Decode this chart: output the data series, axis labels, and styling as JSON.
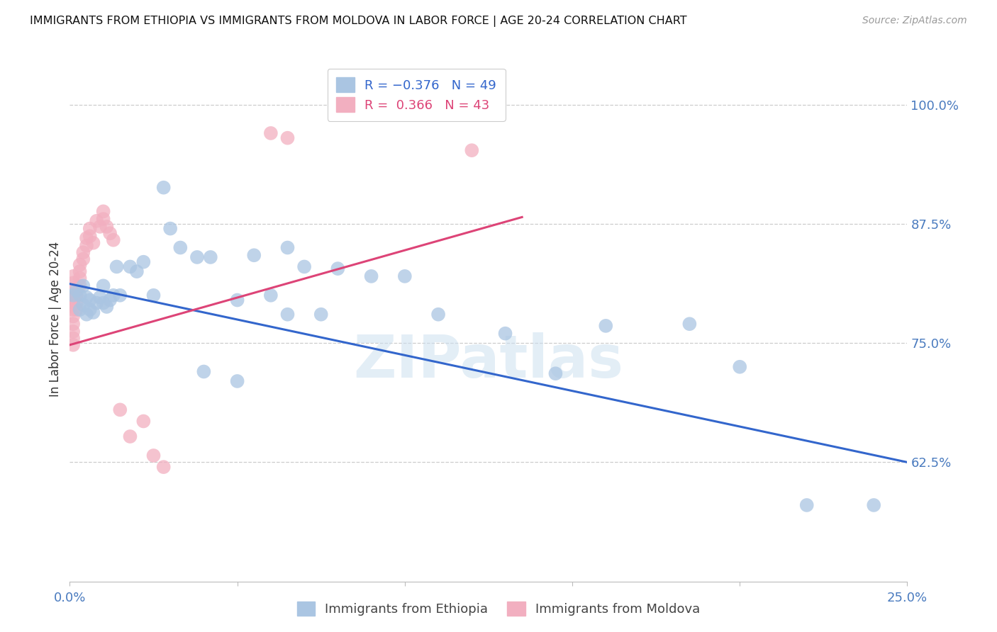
{
  "title": "IMMIGRANTS FROM ETHIOPIA VS IMMIGRANTS FROM MOLDOVA IN LABOR FORCE | AGE 20-24 CORRELATION CHART",
  "source": "Source: ZipAtlas.com",
  "ylabel": "In Labor Force | Age 20-24",
  "xlim": [
    0.0,
    0.25
  ],
  "ylim": [
    0.5,
    1.05
  ],
  "xticks": [
    0.0,
    0.05,
    0.1,
    0.15,
    0.2,
    0.25
  ],
  "xticklabels": [
    "0.0%",
    "",
    "",
    "",
    "",
    "25.0%"
  ],
  "yticks": [
    0.625,
    0.75,
    0.875,
    1.0
  ],
  "yticklabels": [
    "62.5%",
    "75.0%",
    "87.5%",
    "100.0%"
  ],
  "ethiopia_color": "#aac5e2",
  "moldova_color": "#f2afc0",
  "ethiopia_line_color": "#3366cc",
  "moldova_line_color": "#dd4477",
  "watermark": "ZIPatlas",
  "ethiopia_scatter_x": [
    0.001,
    0.002,
    0.003,
    0.003,
    0.004,
    0.004,
    0.005,
    0.005,
    0.006,
    0.006,
    0.007,
    0.008,
    0.009,
    0.01,
    0.01,
    0.011,
    0.012,
    0.013,
    0.014,
    0.015,
    0.018,
    0.02,
    0.022,
    0.025,
    0.028,
    0.03,
    0.033,
    0.038,
    0.042,
    0.05,
    0.055,
    0.06,
    0.065,
    0.07,
    0.08,
    0.09,
    0.1,
    0.11,
    0.13,
    0.145,
    0.16,
    0.185,
    0.2,
    0.22,
    0.24,
    0.065,
    0.075,
    0.04,
    0.05
  ],
  "ethiopia_scatter_y": [
    0.8,
    0.805,
    0.785,
    0.8,
    0.79,
    0.81,
    0.78,
    0.798,
    0.785,
    0.795,
    0.782,
    0.792,
    0.798,
    0.81,
    0.792,
    0.788,
    0.795,
    0.8,
    0.83,
    0.8,
    0.83,
    0.825,
    0.835,
    0.8,
    0.913,
    0.87,
    0.85,
    0.84,
    0.84,
    0.795,
    0.842,
    0.8,
    0.85,
    0.83,
    0.828,
    0.82,
    0.82,
    0.78,
    0.76,
    0.718,
    0.768,
    0.77,
    0.725,
    0.58,
    0.58,
    0.78,
    0.78,
    0.72,
    0.71
  ],
  "moldova_scatter_x": [
    0.001,
    0.001,
    0.001,
    0.001,
    0.001,
    0.001,
    0.001,
    0.001,
    0.001,
    0.001,
    0.002,
    0.002,
    0.002,
    0.002,
    0.003,
    0.003,
    0.003,
    0.003,
    0.004,
    0.004,
    0.005,
    0.005,
    0.006,
    0.006,
    0.007,
    0.008,
    0.009,
    0.01,
    0.01,
    0.011,
    0.012,
    0.013,
    0.015,
    0.018,
    0.022,
    0.025,
    0.028,
    0.06,
    0.065,
    0.09,
    0.095,
    0.12
  ],
  "moldova_scatter_y": [
    0.798,
    0.792,
    0.785,
    0.778,
    0.77,
    0.762,
    0.755,
    0.748,
    0.82,
    0.813,
    0.808,
    0.8,
    0.792,
    0.785,
    0.832,
    0.825,
    0.818,
    0.81,
    0.845,
    0.838,
    0.86,
    0.852,
    0.87,
    0.862,
    0.855,
    0.878,
    0.872,
    0.888,
    0.88,
    0.872,
    0.865,
    0.858,
    0.68,
    0.652,
    0.668,
    0.632,
    0.62,
    0.97,
    0.965,
    1.0,
    0.995,
    0.952
  ],
  "ethiopia_line_x0": 0.0,
  "ethiopia_line_x1": 0.25,
  "ethiopia_line_y0": 0.812,
  "ethiopia_line_y1": 0.625,
  "moldova_line_x0": 0.0,
  "moldova_line_x1": 0.135,
  "moldova_line_y0": 0.748,
  "moldova_line_y1": 0.882
}
